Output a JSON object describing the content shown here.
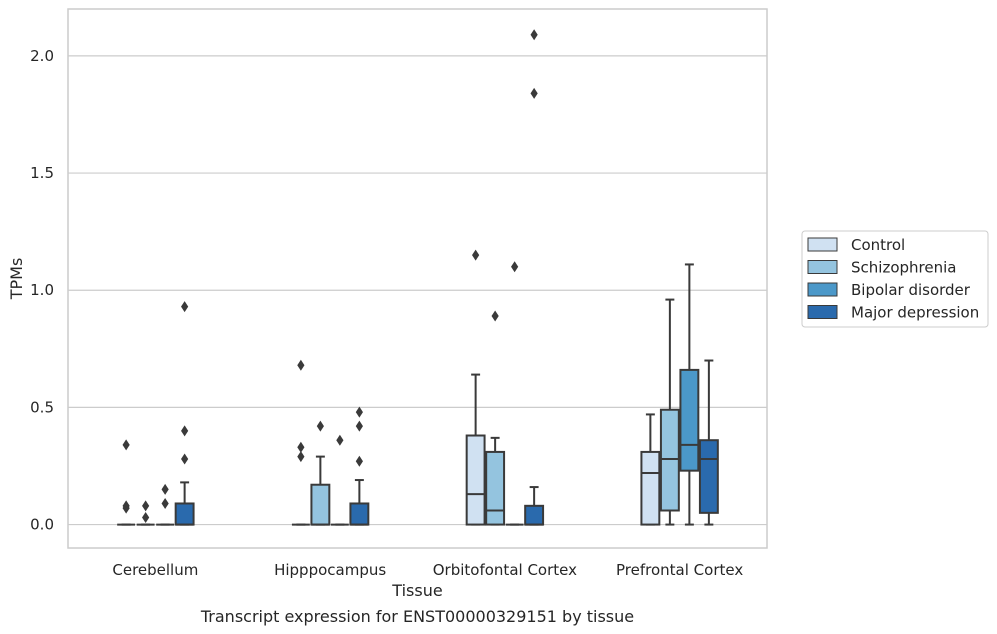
{
  "chart_data": {
    "type": "box",
    "title": "",
    "caption": "Transcript expression for ENST00000329151 by tissue",
    "xlabel": "Tissue",
    "ylabel": "TPMs",
    "ylim": [
      -0.1,
      2.2
    ],
    "yticks": [
      0.0,
      0.5,
      1.0,
      1.5,
      2.0
    ],
    "ytick_labels": [
      "0.0",
      "0.5",
      "1.0",
      "1.5",
      "2.0"
    ],
    "grid": "horizontal",
    "legend_position": "right",
    "categories": [
      "Cerebellum",
      "Hipppocampus",
      "Orbitofontal Cortex",
      "Prefrontal Cortex"
    ],
    "series": [
      {
        "name": "Control",
        "color": "#d0e1f2",
        "boxes": [
          {
            "q1": 0.0,
            "median": 0.0,
            "q3": 0.0,
            "whisker_low": 0.0,
            "whisker_high": 0.0,
            "outliers": [
              0.34,
              0.08,
              0.07
            ]
          },
          {
            "q1": 0.0,
            "median": 0.0,
            "q3": 0.0,
            "whisker_low": 0.0,
            "whisker_high": 0.0,
            "outliers": [
              0.68,
              0.33,
              0.29
            ]
          },
          {
            "q1": 0.0,
            "median": 0.13,
            "q3": 0.38,
            "whisker_low": 0.0,
            "whisker_high": 0.64,
            "outliers": [
              1.15
            ]
          },
          {
            "q1": 0.0,
            "median": 0.22,
            "q3": 0.31,
            "whisker_low": 0.0,
            "whisker_high": 0.47,
            "outliers": []
          }
        ]
      },
      {
        "name": "Schizophrenia",
        "color": "#94c4df",
        "boxes": [
          {
            "q1": 0.0,
            "median": 0.0,
            "q3": 0.0,
            "whisker_low": 0.0,
            "whisker_high": 0.0,
            "outliers": [
              0.08,
              0.03
            ]
          },
          {
            "q1": 0.0,
            "median": 0.0,
            "q3": 0.17,
            "whisker_low": 0.0,
            "whisker_high": 0.29,
            "outliers": [
              0.42
            ]
          },
          {
            "q1": 0.0,
            "median": 0.06,
            "q3": 0.31,
            "whisker_low": 0.0,
            "whisker_high": 0.37,
            "outliers": [
              0.89
            ]
          },
          {
            "q1": 0.06,
            "median": 0.28,
            "q3": 0.49,
            "whisker_low": 0.0,
            "whisker_high": 0.96,
            "outliers": []
          }
        ]
      },
      {
        "name": "Bipolar disorder",
        "color": "#4b98c9",
        "boxes": [
          {
            "q1": 0.0,
            "median": 0.0,
            "q3": 0.0,
            "whisker_low": 0.0,
            "whisker_high": 0.0,
            "outliers": [
              0.15,
              0.09
            ]
          },
          {
            "q1": 0.0,
            "median": 0.0,
            "q3": 0.0,
            "whisker_low": 0.0,
            "whisker_high": 0.0,
            "outliers": [
              0.36
            ]
          },
          {
            "q1": 0.0,
            "median": 0.0,
            "q3": 0.0,
            "whisker_low": 0.0,
            "whisker_high": 0.0,
            "outliers": [
              1.1
            ]
          },
          {
            "q1": 0.23,
            "median": 0.34,
            "q3": 0.66,
            "whisker_low": 0.0,
            "whisker_high": 1.11,
            "outliers": []
          }
        ]
      },
      {
        "name": "Major depression",
        "color": "#2a6aad",
        "boxes": [
          {
            "q1": 0.0,
            "median": 0.0,
            "q3": 0.09,
            "whisker_low": 0.0,
            "whisker_high": 0.18,
            "outliers": [
              0.93,
              0.4,
              0.28
            ]
          },
          {
            "q1": 0.0,
            "median": 0.0,
            "q3": 0.09,
            "whisker_low": 0.0,
            "whisker_high": 0.19,
            "outliers": [
              0.48,
              0.42,
              0.27
            ]
          },
          {
            "q1": 0.0,
            "median": 0.0,
            "q3": 0.08,
            "whisker_low": 0.0,
            "whisker_high": 0.16,
            "outliers": [
              2.09,
              1.84
            ]
          },
          {
            "q1": 0.05,
            "median": 0.28,
            "q3": 0.36,
            "whisker_low": 0.0,
            "whisker_high": 0.7,
            "outliers": []
          }
        ]
      }
    ]
  }
}
